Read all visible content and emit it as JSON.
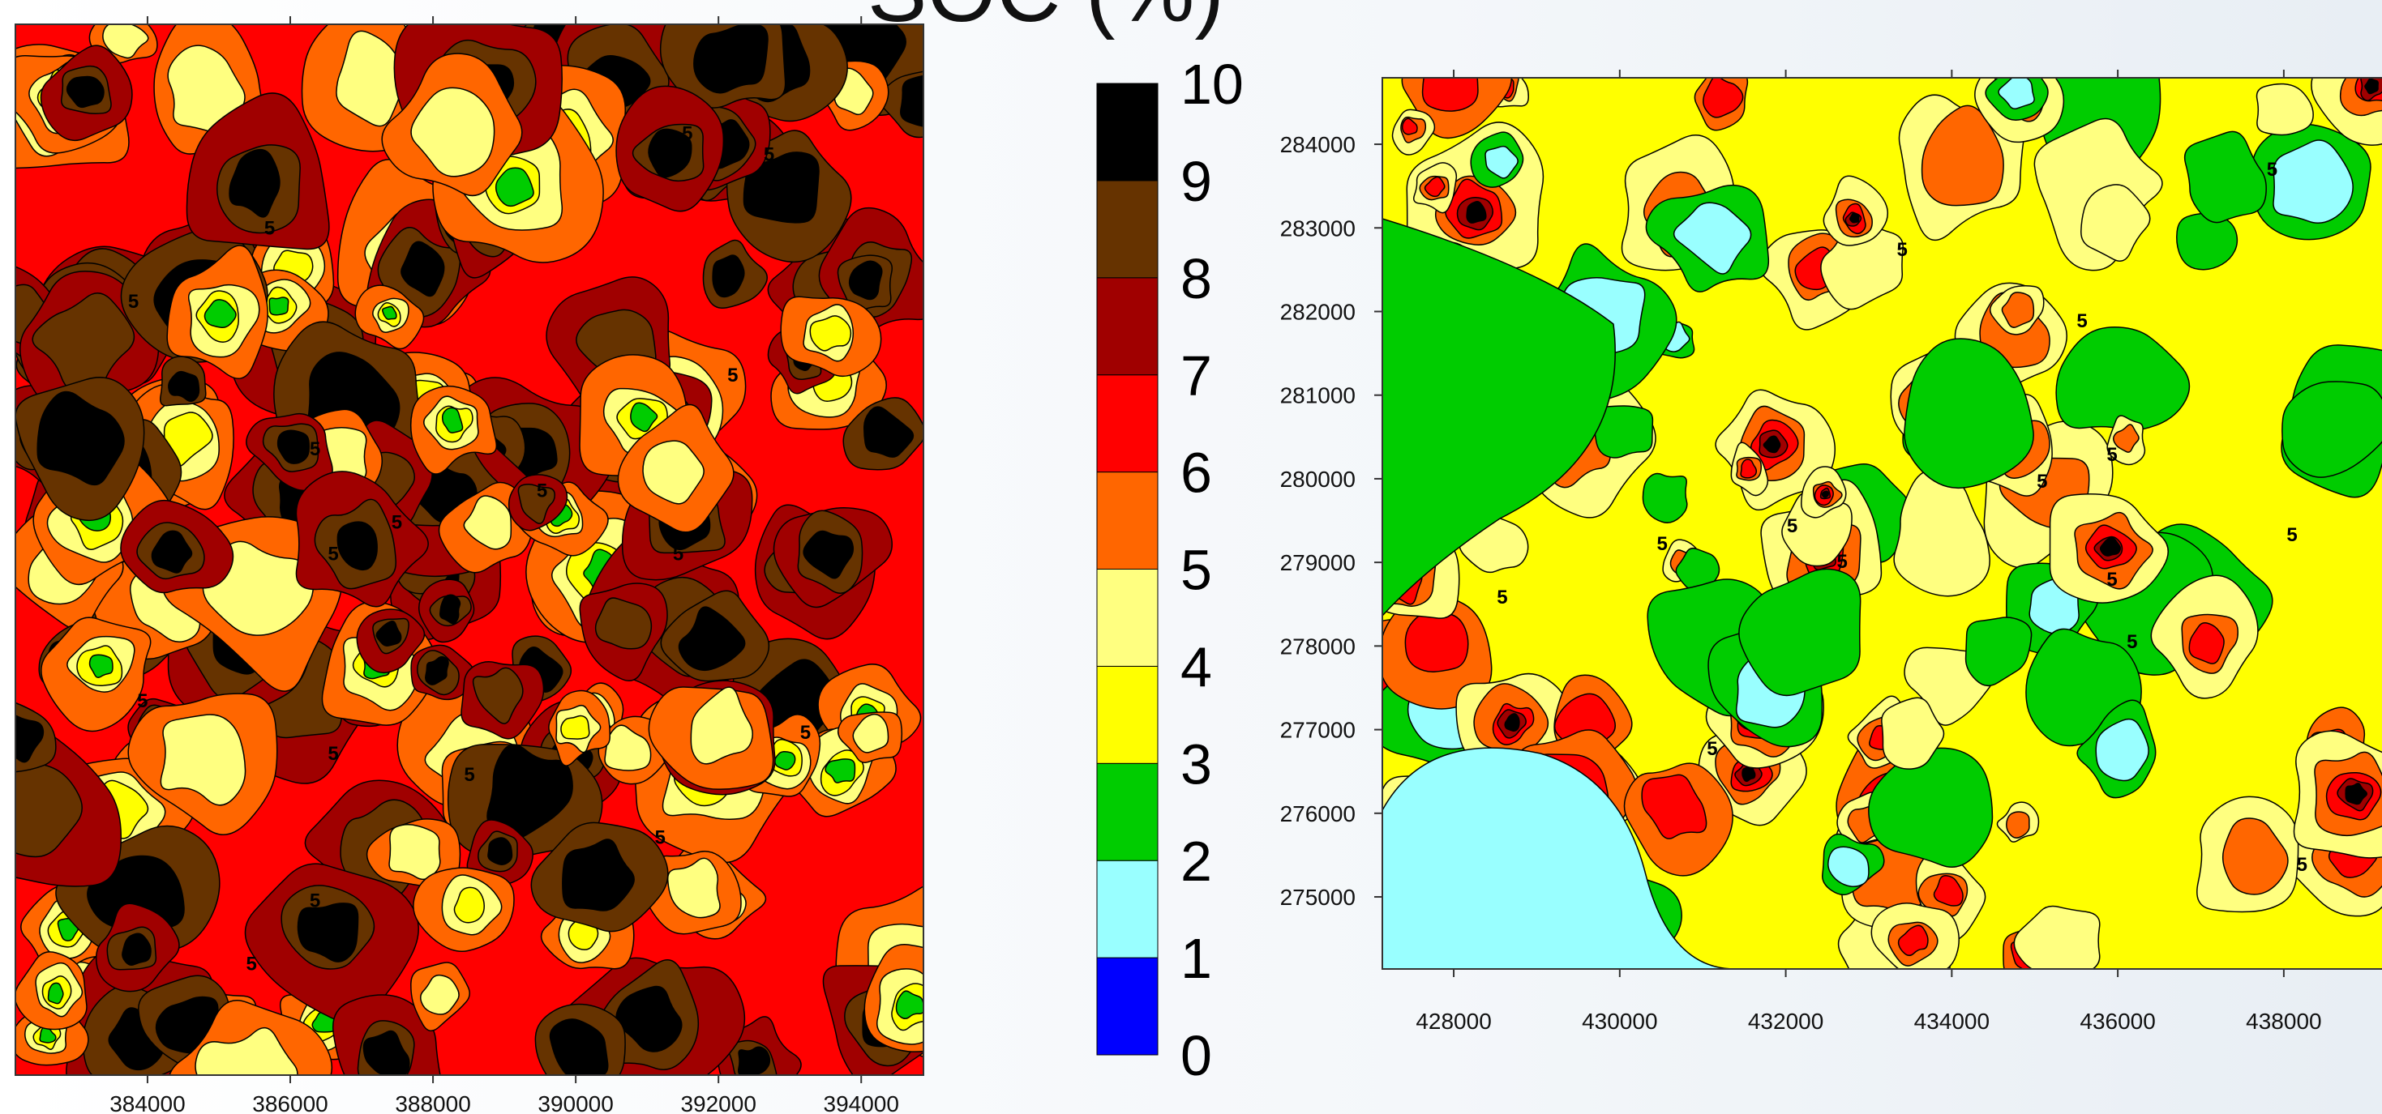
{
  "title": "SOC (%)",
  "legend": {
    "lim": [
      0,
      10
    ],
    "ticks": [
      0,
      1,
      2,
      3,
      4,
      5,
      6,
      7,
      8,
      9,
      10
    ],
    "colors": [
      "#0000ff",
      "#99ffff",
      "#00cc00",
      "#ffff00",
      "#ffff80",
      "#ff6600",
      "#ff0000",
      "#a00000",
      "#663300",
      "#000000"
    ]
  },
  "maps": [
    {
      "xlim": [
        382149,
        394872
      ],
      "xticks": [
        384000,
        386000,
        388000,
        390000,
        392000,
        394000
      ],
      "contour_labels": [
        "5",
        "5",
        "5",
        "5",
        "5",
        "5",
        "5",
        "5",
        "5",
        "5",
        "5",
        "5",
        "5",
        "5",
        "5",
        "5",
        "5"
      ]
    },
    {
      "xlim": [
        427140,
        439183
      ],
      "ylim": [
        274138,
        284795
      ],
      "xticks": [
        428000,
        430000,
        432000,
        434000,
        436000,
        438000
      ],
      "yticks": [
        275000,
        276000,
        277000,
        278000,
        279000,
        280000,
        281000,
        282000,
        283000,
        284000
      ],
      "contour_labels": [
        "5",
        "5",
        "5",
        "5",
        "5",
        "5",
        "5",
        "5",
        "5",
        "5",
        "5",
        "5",
        "5",
        "5"
      ]
    }
  ]
}
